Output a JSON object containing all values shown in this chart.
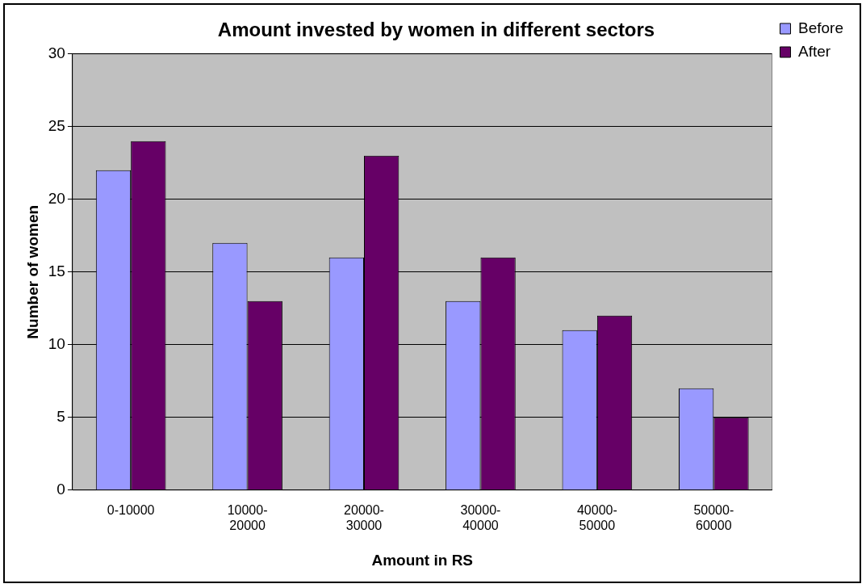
{
  "chart_data": {
    "type": "bar",
    "title": "Amount invested by women in different sectors",
    "xlabel": "Amount in RS",
    "ylabel": "Number of women",
    "categories": [
      "0-10000",
      "10000-20000",
      "20000-30000",
      "30000-40000",
      "40000-50000",
      "50000-60000"
    ],
    "series": [
      {
        "name": "Before",
        "color": "#9999ff",
        "values": [
          22,
          17,
          16,
          13,
          11,
          7
        ]
      },
      {
        "name": "After",
        "color": "#660066",
        "values": [
          24,
          13,
          23,
          16,
          12,
          5
        ]
      }
    ],
    "ylim": [
      0,
      30
    ],
    "yticks": [
      0,
      5,
      10,
      15,
      20,
      25,
      30
    ],
    "grid": "y",
    "legend": "top right"
  }
}
